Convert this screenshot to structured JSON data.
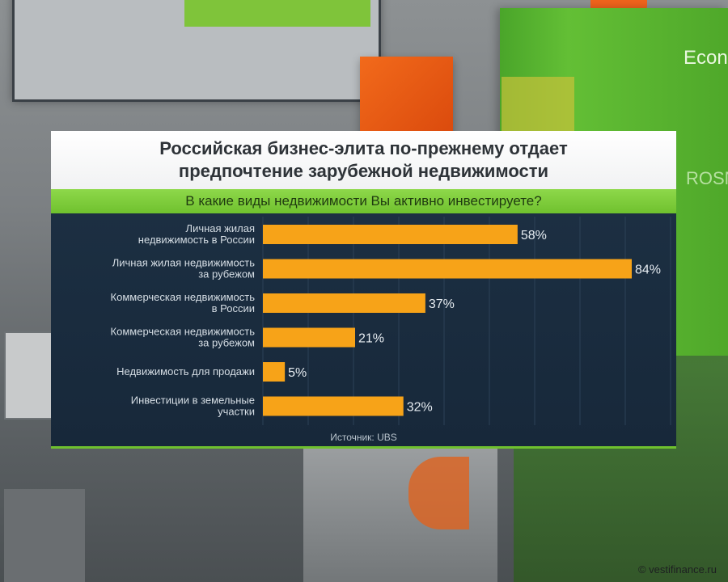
{
  "title_lines": [
    "Российская бизнес-элита по-прежнему отдает",
    "предпочтение зарубежной недвижимости"
  ],
  "question": "В какие виды недвижимости Вы активно инвестируете?",
  "source": "Источник: UBS",
  "copyright": "© vestifinance.ru",
  "background_texts": {
    "green_panel_top": "Econom",
    "green_panel_mid": "ROSN"
  },
  "colors": {
    "bar": "#f7a318",
    "accent_green": "#6fc12e",
    "panel_bg": "#1c2f42"
  },
  "chart_data": {
    "type": "bar",
    "orientation": "horizontal",
    "categories": [
      [
        "Личная жилая",
        "недвижимость в России"
      ],
      [
        "Личная жилая недвижимость",
        "за рубежом"
      ],
      [
        "Коммерческая недвижимость",
        "в России"
      ],
      [
        "Коммерческая недвижимость",
        "за рубежом"
      ],
      [
        "Недвижимость для продажи"
      ],
      [
        "Инвестиции в земельные",
        "участки"
      ]
    ],
    "values": [
      58,
      84,
      37,
      21,
      5,
      32
    ],
    "value_labels": [
      "58%",
      "84%",
      "37%",
      "21%",
      "5%",
      "32%"
    ],
    "xlim": [
      0,
      84
    ],
    "grid": true
  }
}
